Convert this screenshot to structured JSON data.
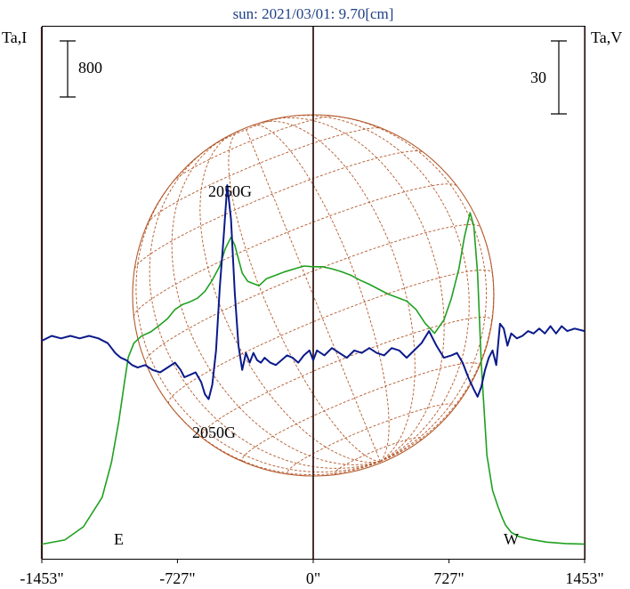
{
  "title": "sun: 2021/03/01: 9.70[cm]",
  "left_axis_label": "Ta,I",
  "right_axis_label": "Ta,V",
  "left_scale_bar_value": "800",
  "right_scale_bar_value": "30",
  "east_label": "E",
  "west_label": "W",
  "annotations": [
    "2050G",
    "2050G"
  ],
  "colors": {
    "intensity": "#1fa01f",
    "polarization": "#0a1a8a",
    "solar_grid": "#b4592b",
    "limb_lines": "#3a1a1a",
    "title": "#1f3f87"
  },
  "chart_data": {
    "type": "line",
    "title": "sun: 2021/03/01: 9.70[cm]",
    "xlabel": "",
    "ylabel_left": "Ta,I",
    "ylabel_right": "Ta,V",
    "xlim": [
      -1453,
      1453
    ],
    "x_ticks": [
      -1453,
      -727,
      0,
      727,
      1453
    ],
    "x_tick_labels": [
      "-1453\"",
      "-727\"",
      "0\"",
      "727\"",
      "1453\""
    ],
    "limb_markers": [
      {
        "label": "E",
        "x": -1454
      },
      {
        "label": "W",
        "x": 1454
      }
    ],
    "series": [
      {
        "name": "Ta,I",
        "axis": "left",
        "x": [
          -1453,
          -1330,
          -1230,
          -1130,
          -1080,
          -1040,
          -1010,
          -990,
          -960,
          -920,
          -870,
          -830,
          -780,
          -740,
          -700,
          -660,
          -620,
          -580,
          -540,
          -500,
          -470,
          -440,
          -420,
          -400,
          -380,
          -350,
          -320,
          -290,
          -250,
          -200,
          -150,
          -100,
          -50,
          0,
          50,
          100,
          150,
          200,
          250,
          300,
          350,
          400,
          450,
          500,
          550,
          600,
          650,
          700,
          740,
          780,
          810,
          840,
          860,
          880,
          900,
          930,
          960,
          990,
          1010,
          1030,
          1060,
          1100,
          1160,
          1250,
          1350,
          1453
        ],
        "y": [
          30,
          90,
          280,
          700,
          1200,
          1800,
          2350,
          2700,
          2900,
          3000,
          3060,
          3140,
          3250,
          3380,
          3450,
          3490,
          3540,
          3640,
          3800,
          4000,
          4250,
          4410,
          4300,
          4100,
          3900,
          3780,
          3750,
          3720,
          3820,
          3870,
          3920,
          3960,
          4000,
          3990,
          3990,
          3960,
          3920,
          3870,
          3800,
          3740,
          3670,
          3600,
          3550,
          3500,
          3380,
          3180,
          3040,
          3230,
          3540,
          3960,
          4420,
          4760,
          4570,
          3900,
          2600,
          1300,
          800,
          560,
          420,
          300,
          200,
          140,
          100,
          60,
          40,
          30
        ]
      },
      {
        "name": "Ta,V",
        "axis": "right",
        "x": [
          -1453,
          -1400,
          -1350,
          -1300,
          -1250,
          -1200,
          -1150,
          -1100,
          -1060,
          -1030,
          -1000,
          -970,
          -940,
          -900,
          -860,
          -820,
          -780,
          -740,
          -710,
          -690,
          -660,
          -630,
          -600,
          -580,
          -560,
          -540,
          -520,
          -500,
          -480,
          -460,
          -440,
          -420,
          -400,
          -380,
          -360,
          -340,
          -320,
          -300,
          -280,
          -260,
          -230,
          -200,
          -170,
          -140,
          -110,
          -80,
          -50,
          -20,
          0,
          20,
          60,
          100,
          140,
          180,
          220,
          260,
          300,
          340,
          380,
          420,
          460,
          500,
          540,
          580,
          620,
          660,
          700,
          740,
          770,
          800,
          830,
          860,
          880,
          900,
          920,
          940,
          960,
          980,
          1000,
          1020,
          1040,
          1060,
          1090,
          1120,
          1150,
          1180,
          1210,
          1240,
          1270,
          1300,
          1330,
          1360,
          1400,
          1453
        ],
        "y": [
          0,
          2,
          1,
          2,
          1,
          2,
          1,
          -1,
          -5,
          -7,
          -8,
          -10,
          -11,
          -10,
          -12,
          -13,
          -11,
          -9,
          -12,
          -15,
          -14,
          -13,
          -17,
          -22,
          -24,
          -18,
          -4,
          22,
          42,
          64,
          50,
          20,
          -2,
          -12,
          -5,
          -9,
          -5,
          -8,
          -9,
          -7,
          -9,
          -10,
          -8,
          -6,
          -7,
          -9,
          -6,
          -4,
          -8,
          -4,
          -6,
          -3,
          -5,
          -7,
          -4,
          -5,
          -3,
          -5,
          -6,
          -3,
          -4,
          -7,
          -4,
          -1,
          4,
          -2,
          -7,
          -6,
          -5,
          -9,
          -15,
          -20,
          -23,
          -19,
          -12,
          -7,
          -4,
          -10,
          7,
          5,
          -2,
          3,
          1,
          2,
          4,
          3,
          5,
          3,
          6,
          3,
          6,
          4,
          5,
          4
        ]
      }
    ]
  }
}
